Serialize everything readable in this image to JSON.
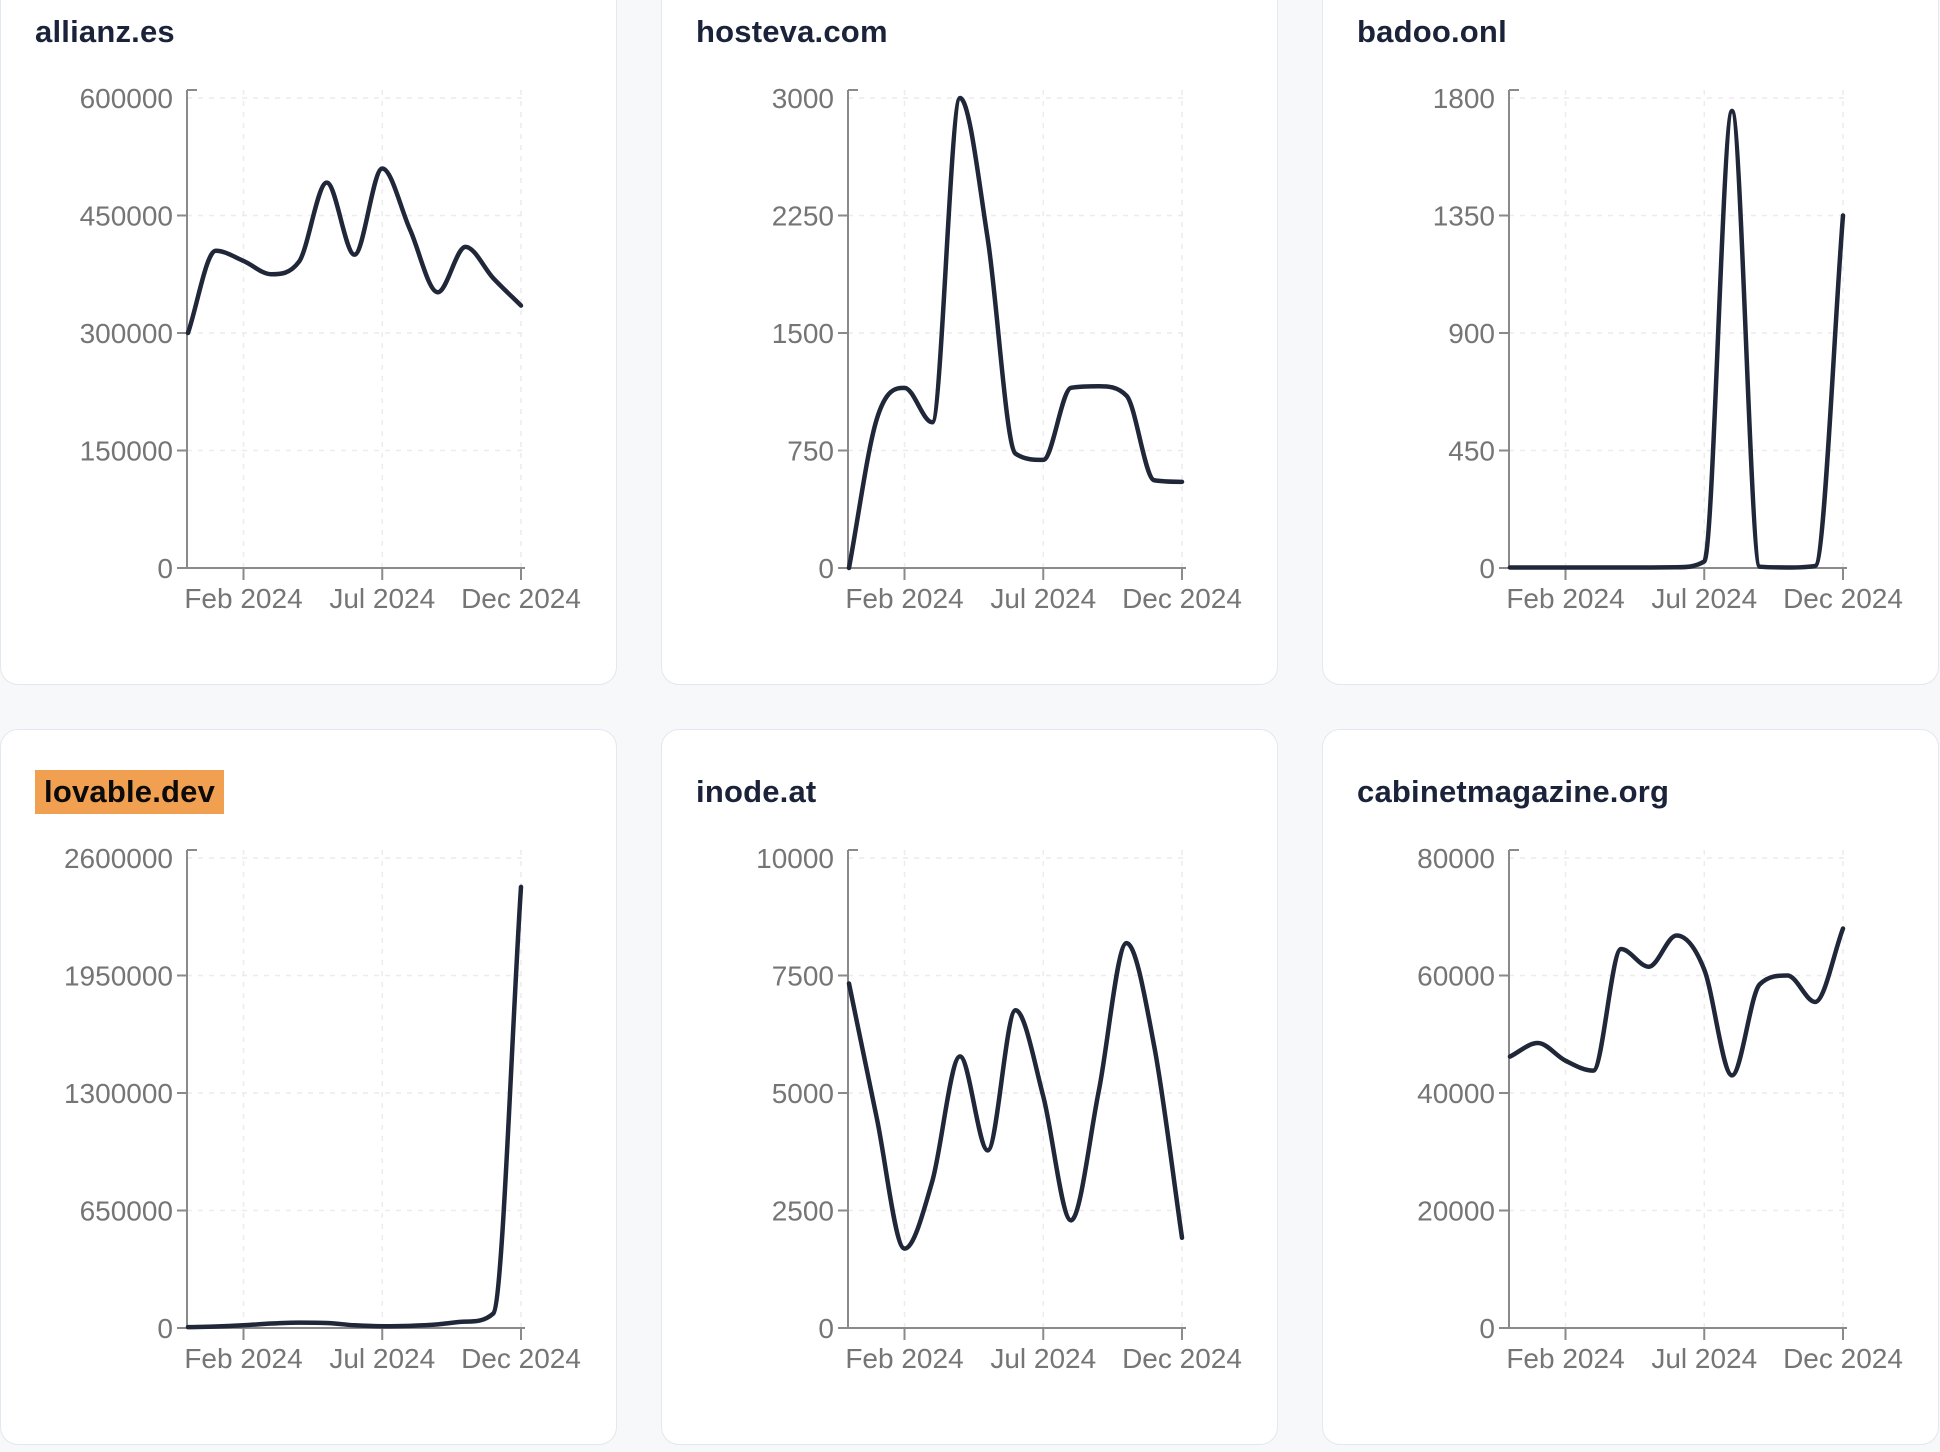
{
  "page": {
    "background_color": "#f7f8fa",
    "card_background": "#ffffff",
    "card_border_color": "#e2e8f0",
    "title_color": "#1a2339",
    "line_color": "#1f2739",
    "axis_color": "#8a8a8a",
    "tick_label_color": "#757575",
    "gridline_color": "#ececec",
    "highlight_color": "#f0a050"
  },
  "chart_data": [
    {
      "type": "line",
      "title": "allianz.es",
      "highlighted": false,
      "x_range": "Dec 2023 - Dec 2024 (monthly)",
      "x_tick_labels": [
        "Feb 2024",
        "Jul 2024",
        "Dec 2024"
      ],
      "x_tick_indices": [
        2,
        7,
        12
      ],
      "y_ticks": [
        0,
        150000,
        300000,
        450000,
        600000
      ],
      "ylim": [
        0,
        600000
      ],
      "grid": true,
      "values": [
        300000,
        405000,
        392000,
        375000,
        391000,
        492000,
        400000,
        510000,
        432000,
        352000,
        410000,
        370000,
        335000
      ]
    },
    {
      "type": "line",
      "title": "hosteva.com",
      "highlighted": false,
      "x_range": "Dec 2023 - Dec 2024 (monthly)",
      "x_tick_labels": [
        "Feb 2024",
        "Jul 2024",
        "Dec 2024"
      ],
      "x_tick_indices": [
        2,
        7,
        12
      ],
      "y_ticks": [
        0,
        750,
        1500,
        2250,
        3000
      ],
      "ylim": [
        0,
        3000
      ],
      "grid": true,
      "values": [
        0,
        950,
        1150,
        930,
        3000,
        2100,
        730,
        690,
        1150,
        1160,
        1100,
        560,
        550
      ]
    },
    {
      "type": "line",
      "title": "badoo.onl",
      "highlighted": false,
      "x_range": "Dec 2023 - Dec 2024 (monthly)",
      "x_tick_labels": [
        "Feb 2024",
        "Jul 2024",
        "Dec 2024"
      ],
      "x_tick_indices": [
        2,
        7,
        12
      ],
      "y_ticks": [
        0,
        450,
        900,
        1350,
        1800
      ],
      "ylim": [
        0,
        1800
      ],
      "grid": true,
      "values": [
        2,
        2,
        2,
        2,
        2,
        2,
        3,
        25,
        1750,
        5,
        2,
        8,
        1350
      ]
    },
    {
      "type": "line",
      "title": "lovable.dev",
      "highlighted": true,
      "x_range": "Dec 2023 - Dec 2024 (monthly)",
      "x_tick_labels": [
        "Feb 2024",
        "Jul 2024",
        "Dec 2024"
      ],
      "x_tick_indices": [
        2,
        7,
        12
      ],
      "y_ticks": [
        0,
        650000,
        1300000,
        1950000,
        2600000
      ],
      "ylim": [
        0,
        2600000
      ],
      "grid": true,
      "values": [
        5000,
        8000,
        15000,
        25000,
        30000,
        28000,
        15000,
        10000,
        12000,
        20000,
        35000,
        80000,
        2440000
      ]
    },
    {
      "type": "line",
      "title": "inode.at",
      "highlighted": false,
      "x_range": "Dec 2023 - Dec 2024 (monthly)",
      "x_tick_labels": [
        "Feb 2024",
        "Jul 2024",
        "Dec 2024"
      ],
      "x_tick_indices": [
        2,
        7,
        12
      ],
      "y_ticks": [
        0,
        2500,
        5000,
        7500,
        10000
      ],
      "ylim": [
        0,
        10000
      ],
      "grid": true,
      "values": [
        7330,
        4470,
        1690,
        3120,
        5780,
        3780,
        6760,
        4930,
        2290,
        5040,
        8190,
        5990,
        1920
      ]
    },
    {
      "type": "line",
      "title": "cabinetmagazine.org",
      "highlighted": false,
      "x_range": "Dec 2023 - Dec 2024 (monthly)",
      "x_tick_labels": [
        "Feb 2024",
        "Jul 2024",
        "Dec 2024"
      ],
      "x_tick_indices": [
        2,
        7,
        12
      ],
      "y_ticks": [
        0,
        20000,
        40000,
        60000,
        80000
      ],
      "ylim": [
        0,
        80000
      ],
      "grid": true,
      "values": [
        46200,
        48500,
        45500,
        43800,
        64500,
        61500,
        66800,
        61000,
        43000,
        58500,
        60000,
        55500,
        68000
      ]
    }
  ]
}
